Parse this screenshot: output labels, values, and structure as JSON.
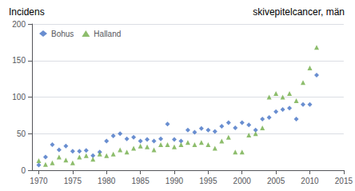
{
  "chart_data": {
    "type": "scatter",
    "title": "Incidens",
    "subtitle": "skivepitelcancer, män",
    "x": [
      1970,
      1971,
      1972,
      1973,
      1974,
      1975,
      1976,
      1977,
      1978,
      1979,
      1980,
      1981,
      1982,
      1983,
      1984,
      1985,
      1986,
      1987,
      1988,
      1989,
      1990,
      1991,
      1992,
      1993,
      1994,
      1995,
      1996,
      1997,
      1998,
      1999,
      2000,
      2001,
      2002,
      2003,
      2004,
      2005,
      2006,
      2007,
      2008,
      2009,
      2010,
      2011
    ],
    "series": [
      {
        "name": "Bohus",
        "color": "#4472C4",
        "marker": "diamond",
        "values": [
          7,
          18,
          35,
          28,
          33,
          26,
          26,
          27,
          20,
          25,
          40,
          47,
          50,
          43,
          45,
          40,
          42,
          40,
          43,
          63,
          42,
          40,
          55,
          52,
          57,
          55,
          53,
          60,
          65,
          58,
          65,
          62,
          55,
          70,
          72,
          80,
          83,
          85,
          70,
          90,
          90,
          130
        ]
      },
      {
        "name": "Halland",
        "color": "#70AD47",
        "marker": "triangle",
        "values": [
          13,
          8,
          10,
          18,
          14,
          10,
          18,
          20,
          15,
          22,
          20,
          22,
          28,
          25,
          30,
          33,
          32,
          28,
          35,
          35,
          32,
          35,
          38,
          35,
          38,
          35,
          30,
          40,
          45,
          25,
          25,
          48,
          50,
          58,
          100,
          105,
          100,
          105,
          95,
          120,
          140,
          168
        ]
      }
    ],
    "xlim": [
      1969,
      2015
    ],
    "xticks": [
      1970,
      1975,
      1980,
      1985,
      1990,
      1995,
      2000,
      2005,
      2010,
      2015
    ],
    "ylim": [
      0,
      200
    ],
    "yticks": [
      0,
      50,
      100,
      150,
      200
    ],
    "grid": true,
    "legend": "upper left"
  }
}
